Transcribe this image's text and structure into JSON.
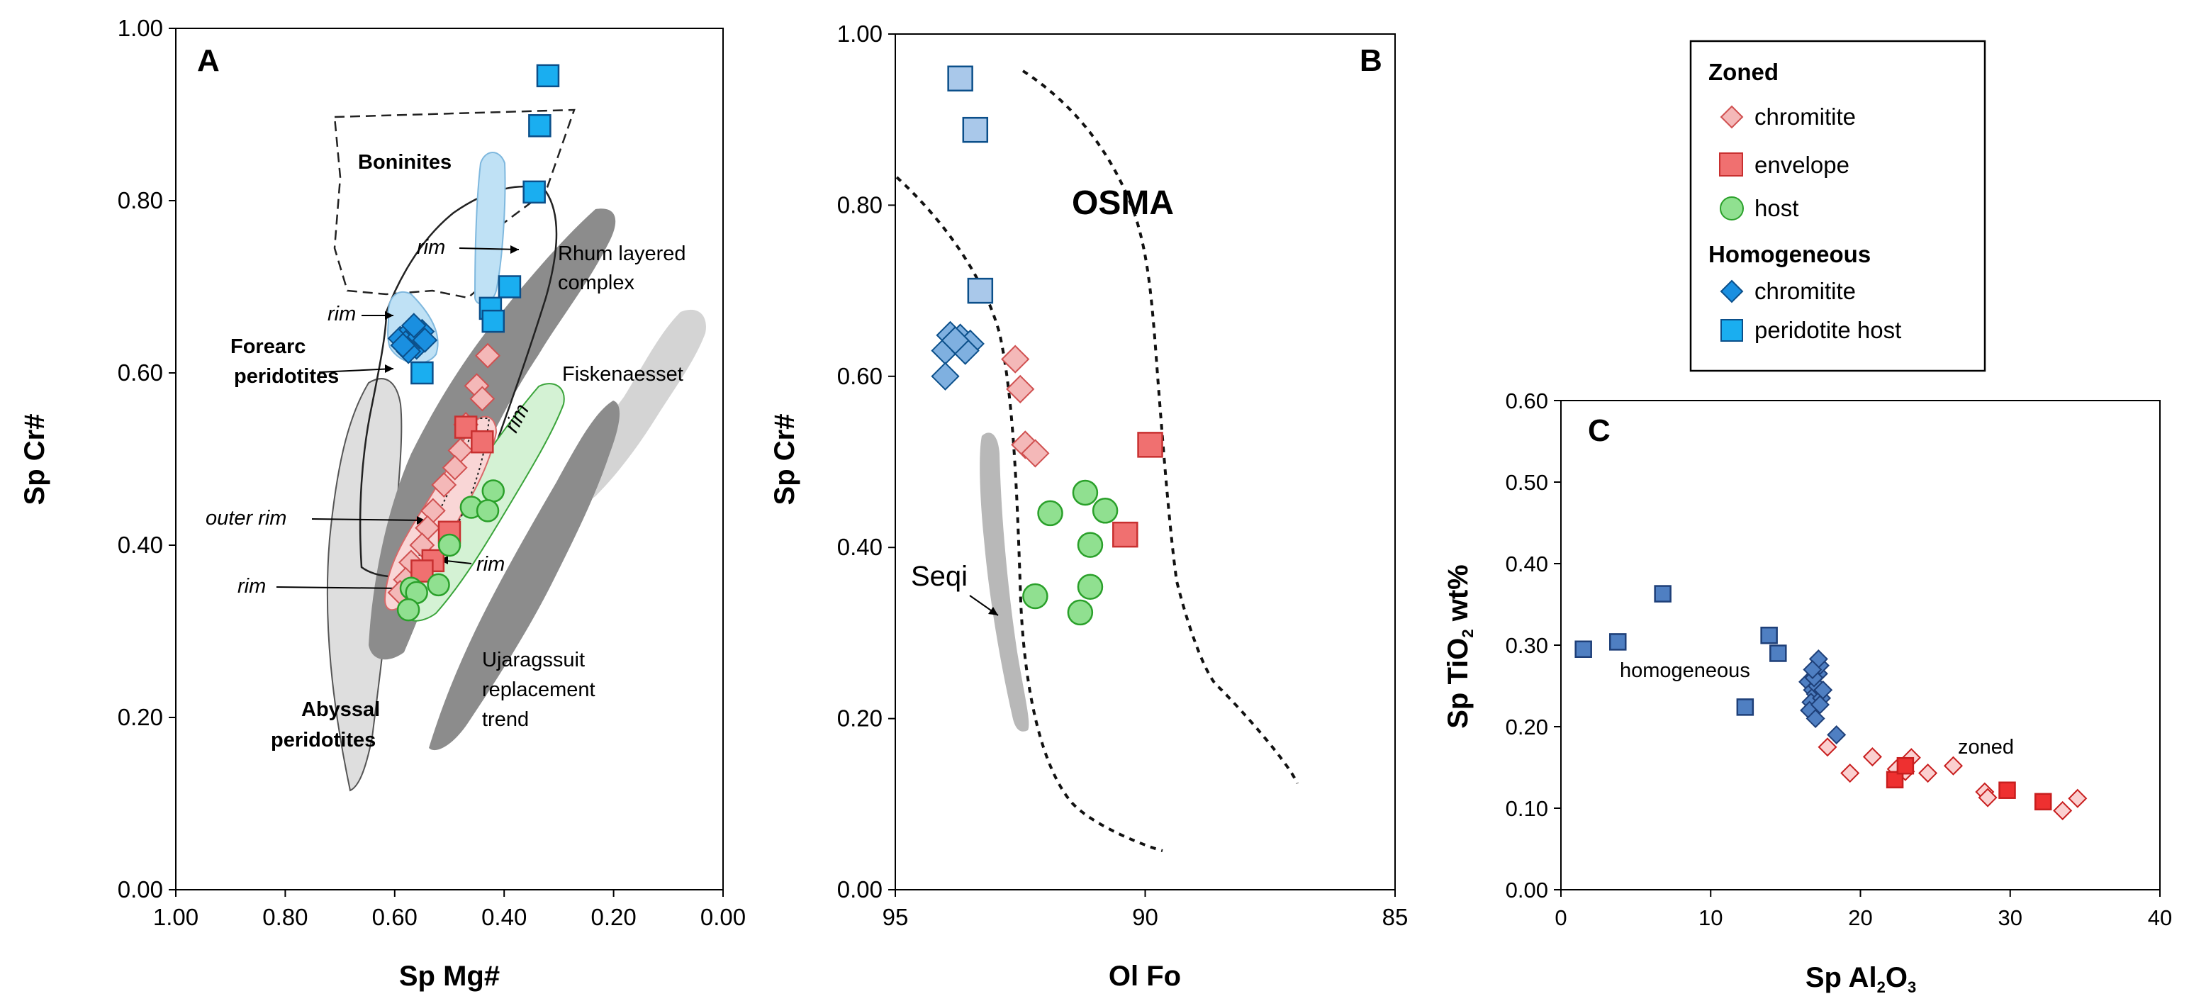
{
  "chart_data": [
    {
      "panel": "A",
      "type": "scatter",
      "xlabel": "Sp Mg#",
      "ylabel": "Sp Cr#",
      "xlim": [
        1.0,
        0.0
      ],
      "ylim": [
        0.0,
        1.0
      ],
      "x_ticks": [
        "1.00",
        "0.80",
        "0.60",
        "0.40",
        "0.20",
        "0.00"
      ],
      "y_ticks": [
        "0.00",
        "0.20",
        "0.40",
        "0.60",
        "0.80",
        "1.00"
      ],
      "field_labels": {
        "boninites": "Boninites",
        "rhum1": "Rhum layered",
        "rhum2": "complex",
        "forearc1": "Forearc",
        "forearc2": "peridotites",
        "fisk": "Fiskenaesset",
        "abyssal1": "Abyssal",
        "abyssal2": "peridotites",
        "uja1": "Ujaragssuit",
        "uja2": "replacement",
        "uja3": "trend"
      },
      "rim_labels": [
        "rim",
        "rim",
        "rim",
        "rim"
      ],
      "outer_rim_label": "outer rim",
      "series": [
        {
          "name": "zoned chromitite",
          "marker": "diamond",
          "color": "#f4b8b8",
          "points": [
            [
              0.43,
              0.62
            ],
            [
              0.45,
              0.585
            ],
            [
              0.44,
              0.57
            ],
            [
              0.47,
              0.54
            ],
            [
              0.48,
              0.51
            ],
            [
              0.49,
              0.49
            ],
            [
              0.51,
              0.47
            ],
            [
              0.53,
              0.44
            ],
            [
              0.54,
              0.42
            ],
            [
              0.55,
              0.4
            ],
            [
              0.57,
              0.38
            ],
            [
              0.58,
              0.36
            ],
            [
              0.59,
              0.345
            ]
          ]
        },
        {
          "name": "zoned envelope",
          "marker": "square",
          "color": "#f07070",
          "points": [
            [
              0.47,
              0.537
            ],
            [
              0.44,
              0.52
            ],
            [
              0.5,
              0.415
            ],
            [
              0.53,
              0.382
            ],
            [
              0.55,
              0.37
            ]
          ]
        },
        {
          "name": "zoned host",
          "marker": "circle",
          "color": "#90e090",
          "points": [
            [
              0.42,
              0.463
            ],
            [
              0.46,
              0.444
            ],
            [
              0.43,
              0.44
            ],
            [
              0.5,
              0.4
            ],
            [
              0.57,
              0.35
            ],
            [
              0.52,
              0.354
            ],
            [
              0.56,
              0.345
            ],
            [
              0.575,
              0.325
            ]
          ]
        },
        {
          "name": "homogeneous chromitite",
          "marker": "diamond",
          "color": "#1a8fe0",
          "points": [
            [
              0.59,
              0.64
            ],
            [
              0.57,
              0.65
            ],
            [
              0.55,
              0.648
            ],
            [
              0.58,
              0.635
            ],
            [
              0.56,
              0.63
            ],
            [
              0.575,
              0.625
            ],
            [
              0.555,
              0.642
            ],
            [
              0.545,
              0.638
            ],
            [
              0.565,
              0.655
            ],
            [
              0.585,
              0.632
            ]
          ]
        },
        {
          "name": "homogeneous peridotite host",
          "marker": "square",
          "color": "#1aaef0",
          "points": [
            [
              0.32,
              0.945
            ],
            [
              0.335,
              0.887
            ],
            [
              0.345,
              0.81
            ],
            [
              0.39,
              0.7
            ],
            [
              0.425,
              0.675
            ],
            [
              0.42,
              0.66
            ],
            [
              0.55,
              0.6
            ]
          ]
        }
      ]
    },
    {
      "panel": "B",
      "type": "scatter",
      "xlabel": "Ol Fo",
      "ylabel": "Sp Cr#",
      "xlim": [
        95,
        85
      ],
      "ylim": [
        0.0,
        1.0
      ],
      "x_ticks": [
        "95",
        "90",
        "85"
      ],
      "y_ticks": [
        "0.00",
        "0.20",
        "0.40",
        "0.60",
        "0.80",
        "1.00"
      ],
      "field_labels": {
        "osma": "OSMA",
        "seqi": "Seqi"
      },
      "series": [
        {
          "name": "homogeneous peridotite host",
          "marker": "square",
          "color": "#a9c8ea",
          "points": [
            [
              93.7,
              0.948
            ],
            [
              93.4,
              0.888
            ],
            [
              93.3,
              0.7
            ]
          ]
        },
        {
          "name": "homogeneous chromitite",
          "marker": "diamond",
          "color": "#7fb0e0",
          "points": [
            [
              93.9,
              0.648
            ],
            [
              93.7,
              0.645
            ],
            [
              93.5,
              0.638
            ],
            [
              94.0,
              0.63
            ],
            [
              93.6,
              0.63
            ],
            [
              93.8,
              0.642
            ],
            [
              94.0,
              0.6
            ]
          ]
        },
        {
          "name": "zoned chromitite",
          "marker": "diamond",
          "color": "#f4b8b8",
          "points": [
            [
              92.6,
              0.62
            ],
            [
              92.5,
              0.585
            ],
            [
              92.4,
              0.52
            ],
            [
              92.2,
              0.51
            ]
          ]
        },
        {
          "name": "zoned envelope",
          "marker": "square",
          "color": "#f07070",
          "points": [
            [
              89.9,
              0.52
            ],
            [
              90.4,
              0.415
            ]
          ]
        },
        {
          "name": "zoned host",
          "marker": "circle",
          "color": "#90e090",
          "points": [
            [
              91.2,
              0.464
            ],
            [
              90.8,
              0.443
            ],
            [
              91.9,
              0.44
            ],
            [
              91.1,
              0.403
            ],
            [
              91.1,
              0.354
            ],
            [
              92.2,
              0.343
            ],
            [
              91.3,
              0.324
            ]
          ]
        }
      ]
    },
    {
      "panel": "C",
      "type": "scatter",
      "xlabel": "Sp Al2O3",
      "xlabel_main": "Sp Al",
      "xlabel_sub1": "2",
      "xlabel_mid": "O",
      "xlabel_sub2": "3",
      "ylabel": "Sp TiO2 wt%",
      "ylabel_main": "Sp TiO",
      "ylabel_sub": "2",
      "ylabel_tail": " wt%",
      "xlim": [
        0,
        40
      ],
      "ylim": [
        0.0,
        0.6
      ],
      "x_ticks": [
        "0",
        "10",
        "20",
        "30",
        "40"
      ],
      "y_ticks": [
        "0.00",
        "0.10",
        "0.20",
        "0.30",
        "0.40",
        "0.50",
        "0.60"
      ],
      "annotations": {
        "homogeneous": "homogeneous",
        "zoned": "zoned"
      },
      "series": [
        {
          "name": "homogeneous peridotite host",
          "marker": "square",
          "color": "#4f7fc2",
          "points": [
            [
              1.5,
              0.295
            ],
            [
              3.8,
              0.304
            ],
            [
              6.8,
              0.363
            ],
            [
              12.3,
              0.224
            ],
            [
              13.9,
              0.312
            ],
            [
              14.5,
              0.29
            ]
          ]
        },
        {
          "name": "homogeneous chromitite",
          "marker": "diamond",
          "color": "#4f7fc2",
          "points": [
            [
              16.5,
              0.255
            ],
            [
              16.8,
              0.245
            ],
            [
              17.0,
              0.24
            ],
            [
              17.2,
              0.265
            ],
            [
              16.7,
              0.23
            ],
            [
              17.1,
              0.25
            ],
            [
              17.3,
              0.275
            ],
            [
              16.9,
              0.26
            ],
            [
              17.4,
              0.235
            ],
            [
              16.6,
              0.22
            ],
            [
              17.0,
              0.21
            ],
            [
              17.2,
              0.283
            ],
            [
              17.5,
              0.245
            ],
            [
              16.8,
              0.27
            ],
            [
              17.3,
              0.227
            ],
            [
              18.4,
              0.19
            ]
          ]
        },
        {
          "name": "zoned chromitite",
          "marker": "diamond",
          "color": "#ee3030",
          "points": [
            [
              17.8,
              0.175
            ],
            [
              19.3,
              0.143
            ],
            [
              20.8,
              0.163
            ],
            [
              22.4,
              0.148
            ],
            [
              23.4,
              0.162
            ],
            [
              24.5,
              0.143
            ],
            [
              26.2,
              0.152
            ],
            [
              28.3,
              0.12
            ],
            [
              28.5,
              0.113
            ],
            [
              33.5,
              0.097
            ],
            [
              34.5,
              0.112
            ],
            [
              23.0,
              0.145
            ]
          ]
        },
        {
          "name": "zoned envelope",
          "marker": "square",
          "color": "#ee3030",
          "points": [
            [
              22.3,
              0.135
            ],
            [
              23.0,
              0.152
            ],
            [
              29.8,
              0.122
            ],
            [
              32.2,
              0.108
            ]
          ]
        }
      ]
    }
  ],
  "legend": {
    "zoned_title": "Zoned",
    "zoned_chromitite": "chromitite",
    "zoned_envelope": "envelope",
    "zoned_host": "host",
    "homog_title": "Homogeneous",
    "homog_chromitite": "chromitite",
    "homog_host": "peridotite host"
  },
  "colors": {
    "zoned_chromitite": "#f4b8b8",
    "zoned_envelope": "#f07070",
    "zoned_host": "#90e090",
    "homog_chromitite": "#1a8fe0",
    "homog_host": "#1aaef0",
    "field_dark": "#8c8c8c",
    "field_light": "#d9d9d9"
  }
}
